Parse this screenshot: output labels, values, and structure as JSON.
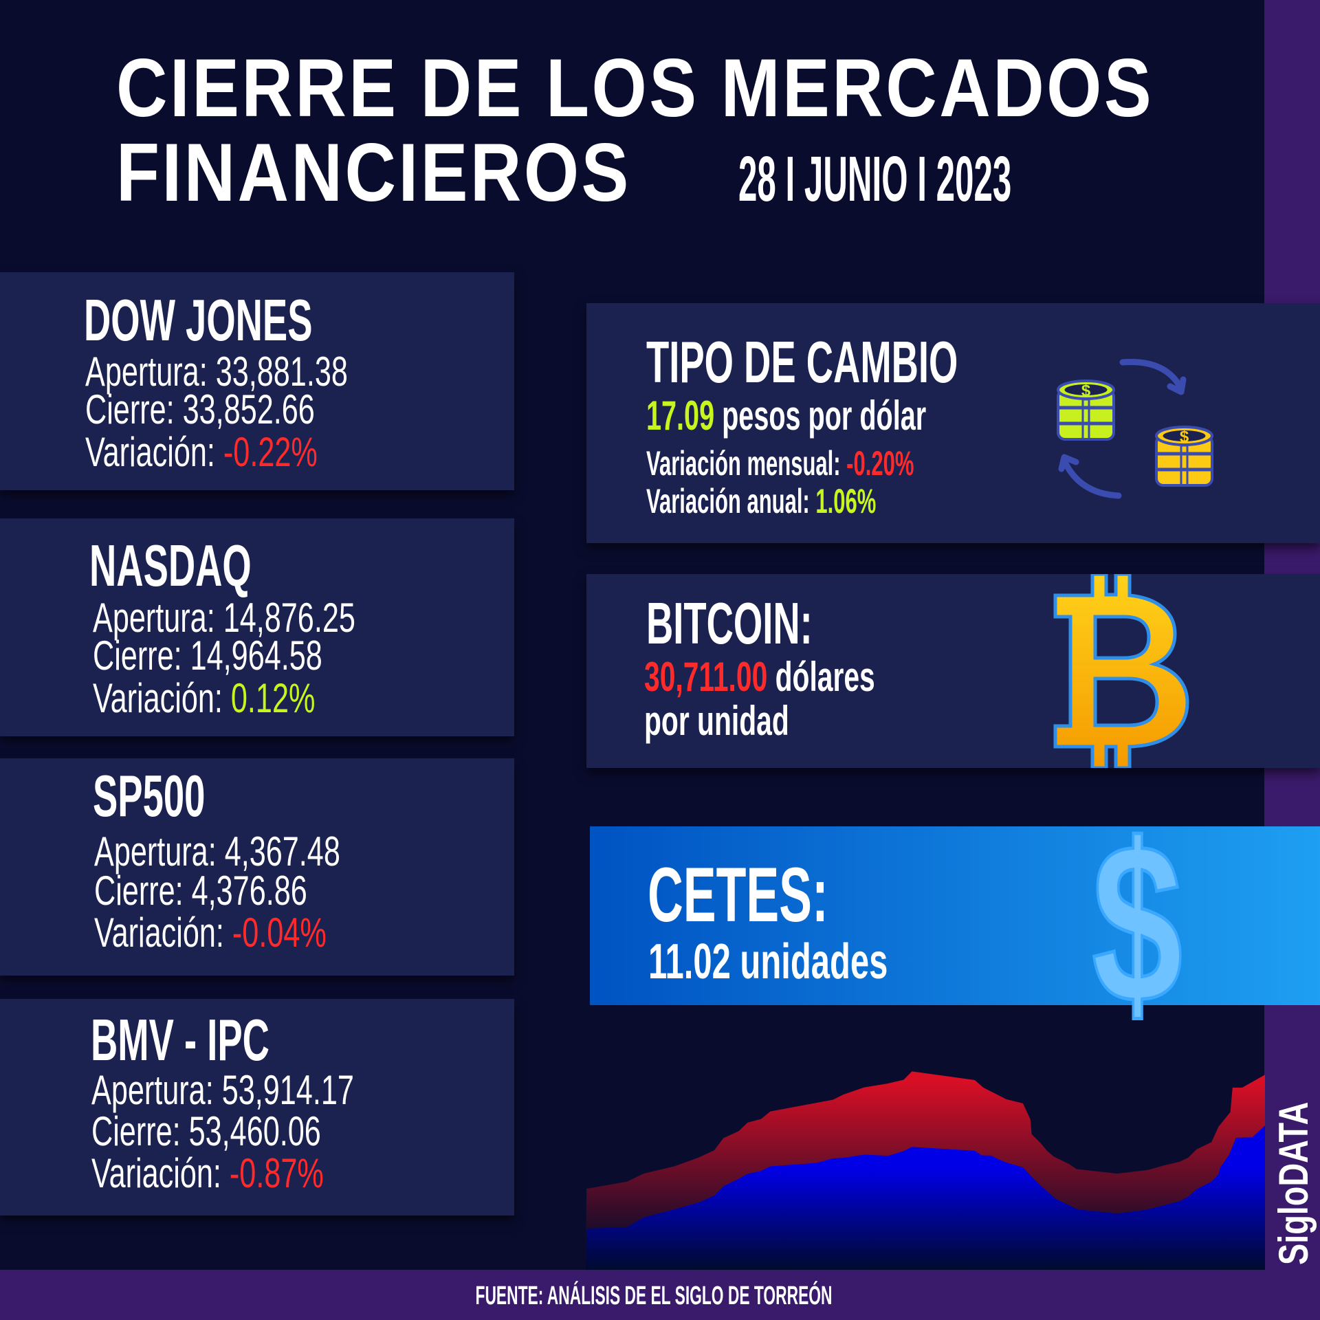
{
  "header": {
    "title_line1": "CIERRE DE LOS MERCADOS",
    "title_line2": "FINANCIEROS",
    "date": "28 I JUNIO I 2023"
  },
  "indices": [
    {
      "name": "DOW JONES",
      "open_label": "Apertura:",
      "open": "33,881.38",
      "close_label": "Cierre:",
      "close": "33,852.66",
      "var_label": "Variación:",
      "var": "-0.22%"
    },
    {
      "name": "NASDAQ",
      "open_label": "Apertura:",
      "open": "14,876.25",
      "close_label": "Cierre:",
      "close": "14,964.58",
      "var_label": "Variación:",
      "var": "0.12%"
    },
    {
      "name": "SP500",
      "open_label": "Apertura:",
      "open": "4,367.48",
      "close_label": "Cierre:",
      "close": "4,376.86",
      "var_label": "Variación:",
      "var": "-0.04%"
    },
    {
      "name": "BMV - IPC",
      "open_label": "Apertura:",
      "open": "53,914.17",
      "close_label": "Cierre:",
      "close": "53,460.06",
      "var_label": "Variación:",
      "var": "-0.87%"
    }
  ],
  "exchange": {
    "title": "TIPO DE CAMBIO",
    "rate": "17.09",
    "rate_unit": "pesos por dólar",
    "monthly_label": "Variación mensual:",
    "monthly": "-0.20%",
    "annual_label": "Variación anual:",
    "annual": "1.06%",
    "icon": "coins-exchange-icon"
  },
  "bitcoin": {
    "title": "BITCOIN:",
    "price": "30,711.00",
    "unit1": "dólares",
    "unit2": "por unidad",
    "icon": "bitcoin-icon"
  },
  "cetes": {
    "title": "CETES:",
    "value": "11.02 unidades",
    "icon": "dollar-icon"
  },
  "footer": {
    "source": "FUENTE: ANÁLISIS DE EL SIGLO DE TORREÓN"
  },
  "brand": {
    "logo": "SigloDATA"
  },
  "colors": {
    "background": "#0a0c2e",
    "panel": "#1b2250",
    "accent_purple": "#3a1a6a",
    "negative": "#ff2b2b",
    "positive": "#c8f51e"
  }
}
